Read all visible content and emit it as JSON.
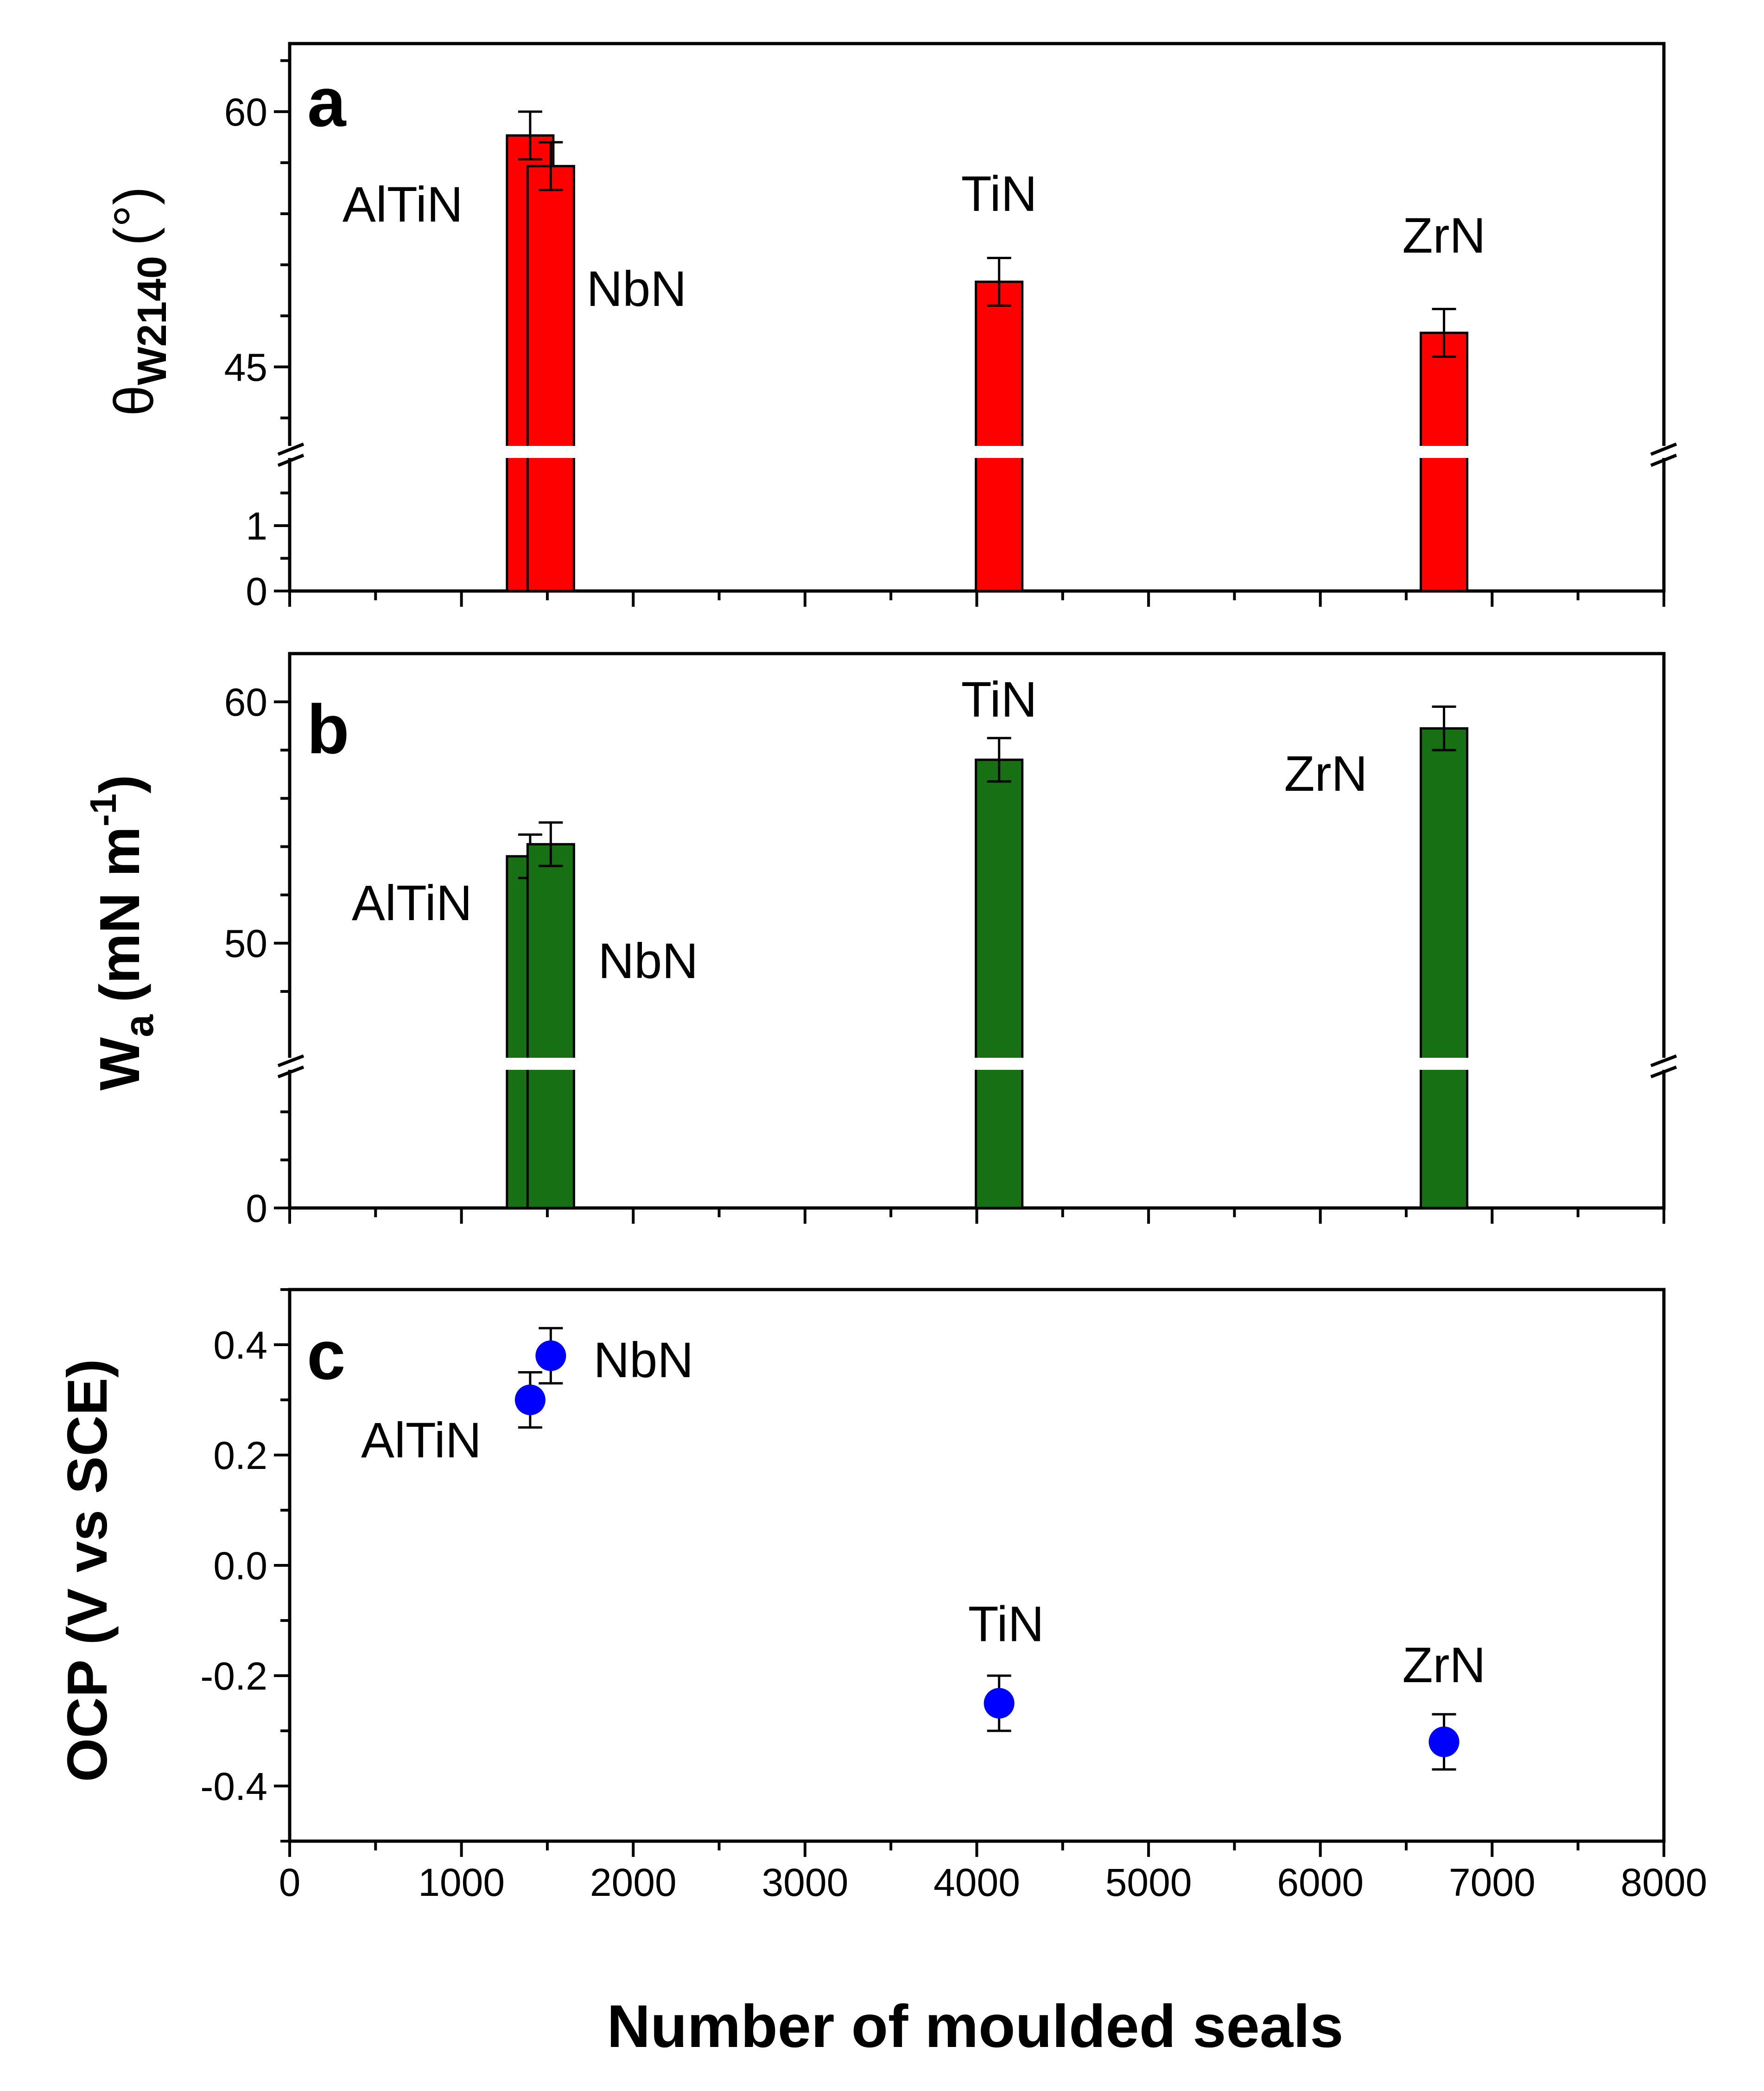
{
  "chart_data": [
    {
      "type": "bar",
      "panel_letter": "a",
      "ylabel": "θ",
      "ylabel_sub": "W2140",
      "ylabel_unit": "(°)",
      "bar_color": "#ff0000",
      "axis_break": true,
      "xlim": [
        0,
        8000
      ],
      "ylim_lower": [
        0,
        2
      ],
      "ylim_upper": [
        40,
        64
      ],
      "yticks": [
        0,
        1,
        45,
        60
      ],
      "points": [
        {
          "label": "AlTiN",
          "x": 1400,
          "y": 58.6,
          "err": 1.4
        },
        {
          "label": "NbN",
          "x": 1520,
          "y": 56.8,
          "err": 1.4
        },
        {
          "label": "TiN",
          "x": 4130,
          "y": 50.0,
          "err": 1.4
        },
        {
          "label": "ZrN",
          "x": 6720,
          "y": 47.0,
          "err": 1.4
        }
      ]
    },
    {
      "type": "bar",
      "panel_letter": "b",
      "ylabel": "W",
      "ylabel_sub": "a",
      "ylabel_unit": "(mN m",
      "ylabel_sup": "-1",
      "ylabel_close": ")",
      "bar_color": "#177013",
      "axis_break": true,
      "xlim": [
        0,
        8000
      ],
      "ylim_lower": [
        0,
        12
      ],
      "ylim_upper": [
        45,
        62
      ],
      "yticks": [
        0,
        50,
        60
      ],
      "points": [
        {
          "label": "AlTiN",
          "x": 1400,
          "y": 53.6,
          "err": 0.9
        },
        {
          "label": "NbN",
          "x": 1520,
          "y": 54.1,
          "err": 0.9
        },
        {
          "label": "TiN",
          "x": 4130,
          "y": 57.6,
          "err": 0.9
        },
        {
          "label": "ZrN",
          "x": 6720,
          "y": 58.9,
          "err": 0.9
        }
      ]
    },
    {
      "type": "scatter",
      "panel_letter": "c",
      "ylabel": "OCP (V vs SCE)",
      "xlabel": "Number of moulded seals",
      "marker_color": "#0000ff",
      "xlim": [
        0,
        8000
      ],
      "ylim": [
        -0.5,
        0.5
      ],
      "xticks": [
        0,
        1000,
        2000,
        3000,
        4000,
        5000,
        6000,
        7000,
        8000
      ],
      "yticks": [
        -0.4,
        -0.2,
        0.0,
        0.2,
        0.4
      ],
      "ytick_labels": [
        "-0.4",
        "-0.2",
        "0.0",
        "0.2",
        "0.4"
      ],
      "points": [
        {
          "label": "AlTiN",
          "x": 1400,
          "y": 0.3,
          "err": 0.05
        },
        {
          "label": "NbN",
          "x": 1520,
          "y": 0.38,
          "err": 0.05
        },
        {
          "label": "TiN",
          "x": 4130,
          "y": -0.25,
          "err": 0.05
        },
        {
          "label": "ZrN",
          "x": 6720,
          "y": -0.32,
          "err": 0.05
        }
      ]
    }
  ]
}
